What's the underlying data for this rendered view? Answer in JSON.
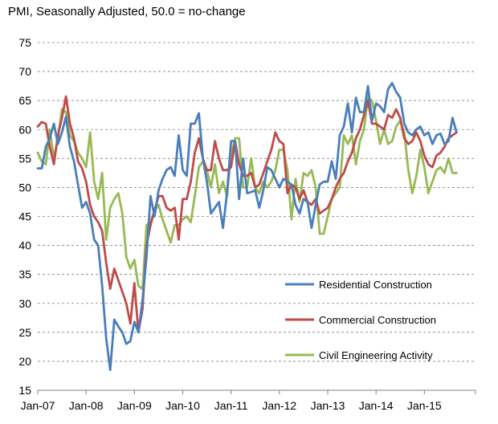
{
  "chart_title": "PMI, Seasonally Adjusted, 50.0 = no-change",
  "chart_data": {
    "type": "line",
    "title": "PMI, Seasonally Adjusted, 50.0 = no-change",
    "xlabel": "",
    "ylabel": "",
    "ylim": [
      15,
      75
    ],
    "yticks": [
      15,
      20,
      25,
      30,
      35,
      40,
      45,
      50,
      55,
      60,
      65,
      70,
      75
    ],
    "x_tick_labels": [
      "Jan-07",
      "Jan-08",
      "Jan-09",
      "Jan-10",
      "Jan-11",
      "Jan-12",
      "Jan-13",
      "Jan-14",
      "Jan-15"
    ],
    "x_start": "Jan-07",
    "grid": "horizontal-dashed",
    "legend_position": "bottom-right",
    "series": [
      {
        "name": "Residential Construction",
        "color": "#4A7EBB",
        "values": [
          53.3,
          53.3,
          57.0,
          58.5,
          61.0,
          57.5,
          59.5,
          62.2,
          57.0,
          54.5,
          50.5,
          46.5,
          47.5,
          45.5,
          41.0,
          40.0,
          33.0,
          24.0,
          18.5,
          27.2,
          26.0,
          25.0,
          23.0,
          23.5,
          26.8,
          25.0,
          30.5,
          38.0,
          48.5,
          45.0,
          49.5,
          51.5,
          53.0,
          53.5,
          52.0,
          59.0,
          53.0,
          52.0,
          61.0,
          61.0,
          62.8,
          55.0,
          51.0,
          45.5,
          46.5,
          47.5,
          43.0,
          49.0,
          58.0,
          58.0,
          48.0,
          55.0,
          49.0,
          49.2,
          49.5,
          46.5,
          49.5,
          53.5,
          53.0,
          51.5,
          50.0,
          51.5,
          51.0,
          50.5,
          47.0,
          45.5,
          48.0,
          47.5,
          43.0,
          47.0,
          50.5,
          51.0,
          51.0,
          54.5,
          51.5,
          59.0,
          60.5,
          64.5,
          59.5,
          65.5,
          63.0,
          63.0,
          67.5,
          61.5,
          64.5,
          64.0,
          63.0,
          67.0,
          68.0,
          66.5,
          65.5,
          61.0,
          59.5,
          59.0,
          60.0,
          60.5,
          59.0,
          59.5,
          57.5,
          59.0,
          59.3,
          57.5,
          58.0,
          62.0,
          59.5
        ]
      },
      {
        "name": "Commercial Construction",
        "color": "#BE4B48",
        "values": [
          60.5,
          61.3,
          61.0,
          57.0,
          54.0,
          59.0,
          62.0,
          65.7,
          61.0,
          58.5,
          54.5,
          53.3,
          51.0,
          47.0,
          45.0,
          44.0,
          42.5,
          37.0,
          32.5,
          36.0,
          34.0,
          32.0,
          30.0,
          26.5,
          33.5,
          25.0,
          29.0,
          40.0,
          43.5,
          46.0,
          48.5,
          48.5,
          46.5,
          46.0,
          46.5,
          41.0,
          48.0,
          48.0,
          51.0,
          56.0,
          58.5,
          55.0,
          53.0,
          53.0,
          58.0,
          55.0,
          53.0,
          53.0,
          53.5,
          58.0,
          54.0,
          52.0,
          52.0,
          52.5,
          50.0,
          50.5,
          52.5,
          54.5,
          56.5,
          59.5,
          58.0,
          57.5,
          49.0,
          50.5,
          50.0,
          48.0,
          49.5,
          47.5,
          47.0,
          48.0,
          45.5,
          46.0,
          46.5,
          48.0,
          50.0,
          51.5,
          52.5,
          54.5,
          56.0,
          58.5,
          60.0,
          62.5,
          65.0,
          61.0,
          61.0,
          60.5,
          60.0,
          62.5,
          62.0,
          63.5,
          62.0,
          58.5,
          57.5,
          58.0,
          59.5,
          58.0,
          55.5,
          54.0,
          53.5,
          55.5,
          56.0,
          57.0,
          58.5,
          59.0,
          59.5
        ]
      },
      {
        "name": "Civil Engineering Activity",
        "color": "#98B954",
        "values": [
          56.0,
          54.5,
          54.0,
          60.0,
          55.0,
          58.5,
          63.5,
          63.0,
          59.0,
          58.0,
          56.0,
          55.0,
          53.5,
          59.5,
          51.0,
          48.0,
          52.5,
          41.0,
          46.5,
          48.0,
          49.0,
          45.5,
          38.0,
          36.0,
          37.5,
          33.0,
          32.5,
          43.5,
          44.0,
          46.0,
          47.0,
          44.5,
          42.5,
          40.5,
          43.5,
          43.5,
          44.5,
          45.0,
          44.0,
          48.5,
          53.5,
          54.5,
          53.0,
          50.0,
          54.0,
          49.0,
          51.0,
          48.5,
          55.5,
          58.5,
          58.5,
          50.0,
          50.0,
          55.0,
          50.0,
          49.0,
          51.0,
          50.0,
          51.0,
          53.0,
          56.5,
          56.5,
          53.0,
          44.5,
          51.5,
          47.5,
          52.5,
          52.0,
          53.0,
          50.0,
          42.0,
          42.0,
          45.0,
          48.0,
          49.0,
          50.0,
          59.0,
          57.5,
          59.0,
          54.0,
          58.0,
          60.0,
          65.5,
          65.0,
          61.5,
          57.5,
          60.0,
          57.5,
          58.0,
          60.5,
          61.5,
          59.5,
          53.0,
          49.0,
          52.0,
          56.5,
          53.5,
          49.0,
          51.0,
          53.0,
          53.5,
          52.5,
          55.0,
          52.5,
          52.5
        ]
      }
    ]
  }
}
